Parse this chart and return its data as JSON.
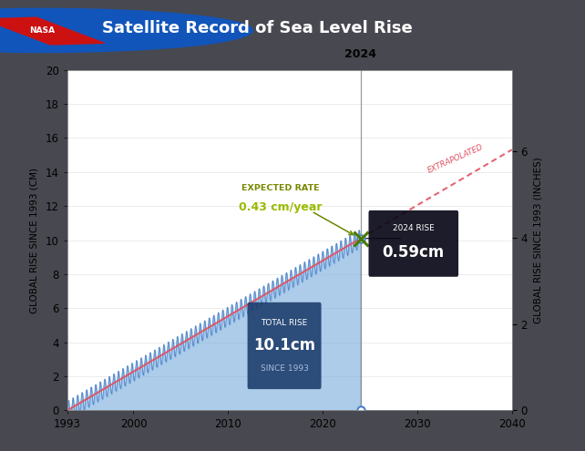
{
  "title": "Satellite Record of Sea Level Rise",
  "ylabel_left": "GLOBAL RISE SINCE 1993 (CM)",
  "ylabel_right": "GLOBAL RISE SINCE 1993 (INCHES)",
  "xlim": [
    1993,
    2040
  ],
  "ylim_cm": [
    0,
    20
  ],
  "ylim_inches_max": 7.874,
  "xticks": [
    1993,
    2000,
    2010,
    2020,
    2030,
    2040
  ],
  "yticks_cm": [
    0,
    2,
    4,
    6,
    8,
    10,
    12,
    14,
    16,
    18,
    20
  ],
  "yticks_inches": [
    0,
    2,
    4,
    6
  ],
  "year_start": 1993,
  "year_current": 2024,
  "year_end": 2040,
  "current_level_cm": 10.1,
  "trend_color": "#e05060",
  "fill_color": "#5b9bd5",
  "fill_alpha": 0.5,
  "line_color": "#4a7cc7",
  "oscillation_amplitude": 0.55,
  "oscillation_period": 0.48,
  "plot_bg": "#ffffff",
  "header_bg": "#404045",
  "fig_bg": "#484850",
  "year_label_2024": "2024",
  "extrapolated_label": "EXTRAPOLATED",
  "expected_rate_text1": "EXPECTED RATE",
  "expected_rate_text2": "0.43 cm/year",
  "expected_rate_color1": "#7a8800",
  "expected_rate_color2": "#99bb00",
  "total_rise_box_color": "#1a3a6a",
  "total_rise_text1": "TOTAL RISE",
  "total_rise_text2": "10.1cm",
  "total_rise_text3": "SINCE 1993",
  "rise_2024_box_color": "#080818",
  "rise_2024_text1": "2024 RISE",
  "rise_2024_text2": "0.59cm",
  "arrow_color": "#6a8800",
  "marker_circle_color": "#4a80cc",
  "green_x_color": "#4a7a00",
  "vline_color": "#888888",
  "hline_color": "#336699",
  "grid_color": "#dddddd"
}
